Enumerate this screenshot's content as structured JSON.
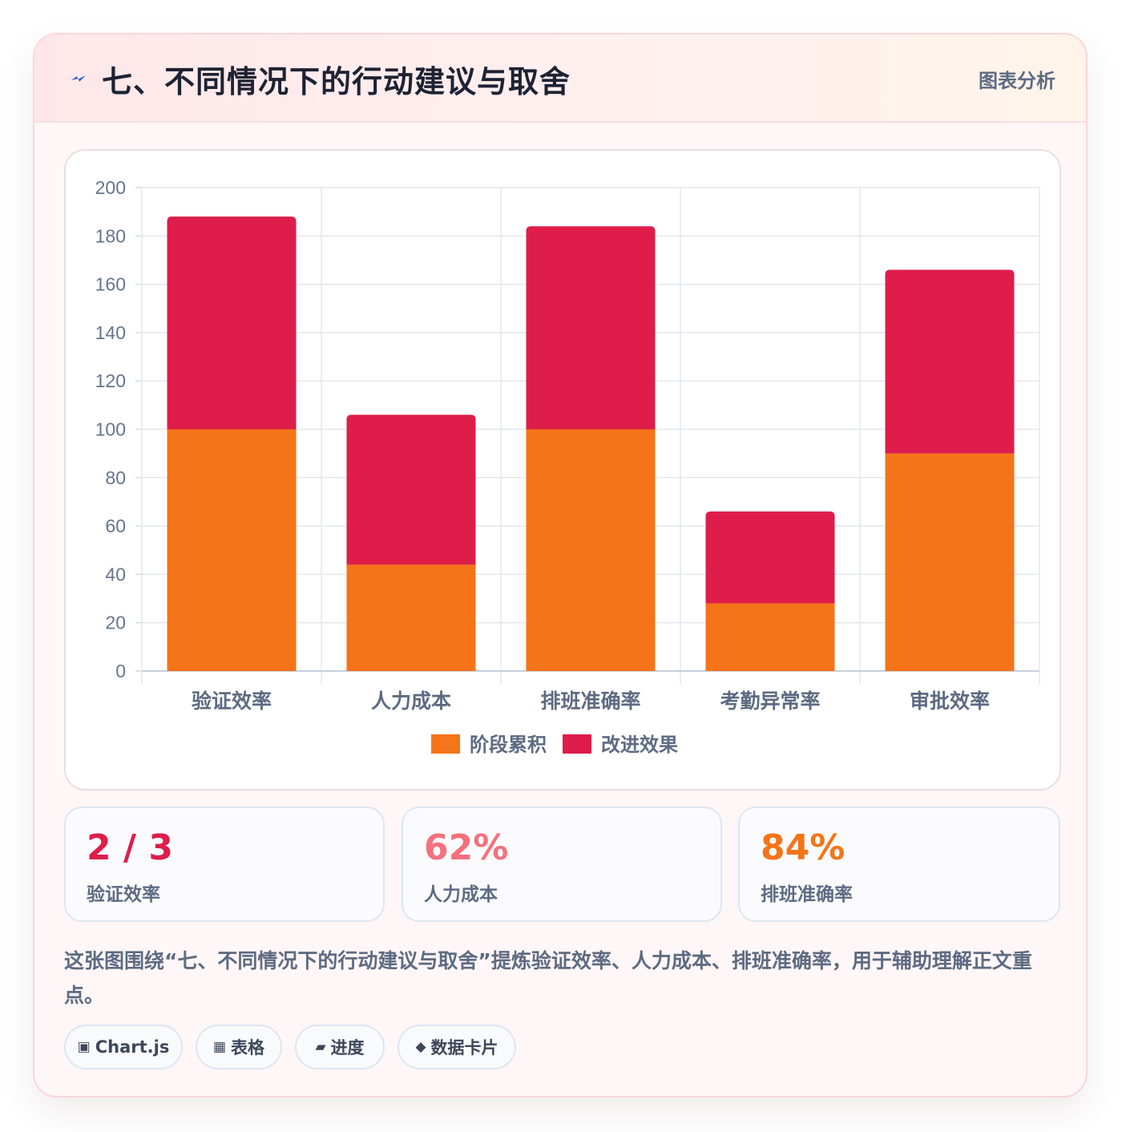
{
  "header": {
    "icon": "lightning-icon",
    "title": "七、不同情况下的行动建议与取舍",
    "tag": "图表分析"
  },
  "colors": {
    "series_1": "#f57419",
    "series_2": "#de1d4b",
    "stat_1": "#de1d4b",
    "stat_2": "#f5707e",
    "stat_3": "#f57419"
  },
  "chart_data": {
    "type": "bar",
    "stacked": true,
    "categories": [
      "验证效率",
      "人力成本",
      "排班准确率",
      "考勤异常率",
      "审批效率"
    ],
    "series": [
      {
        "name": "阶段累积",
        "values": [
          100,
          44,
          100,
          28,
          90
        ]
      },
      {
        "name": "改进效果",
        "values": [
          88,
          62,
          84,
          38,
          76
        ]
      }
    ],
    "ylim": [
      0,
      200
    ],
    "yticks": [
      "0",
      "20",
      "40",
      "60",
      "80",
      "100",
      "120",
      "140",
      "160",
      "180",
      "200"
    ],
    "grid": true,
    "legend": "bottom"
  },
  "stats": [
    {
      "value": "2 / 3",
      "label": "验证效率"
    },
    {
      "value": "62%",
      "label": "人力成本"
    },
    {
      "value": "84%",
      "label": "排班准确率"
    }
  ],
  "description": "这张图围绕“七、不同情况下的行动建议与取舍”提炼验证效率、人力成本、排班准确率，用于辅助理解正文重点。",
  "pills": [
    {
      "icon": "chart-icon",
      "glyph": "▣",
      "label": "Chart.js"
    },
    {
      "icon": "table-icon",
      "glyph": "▦",
      "label": "表格"
    },
    {
      "icon": "progress-icon",
      "glyph": "▰",
      "label": "进度"
    },
    {
      "icon": "diamond-icon",
      "glyph": "◆",
      "label": "数据卡片"
    }
  ]
}
